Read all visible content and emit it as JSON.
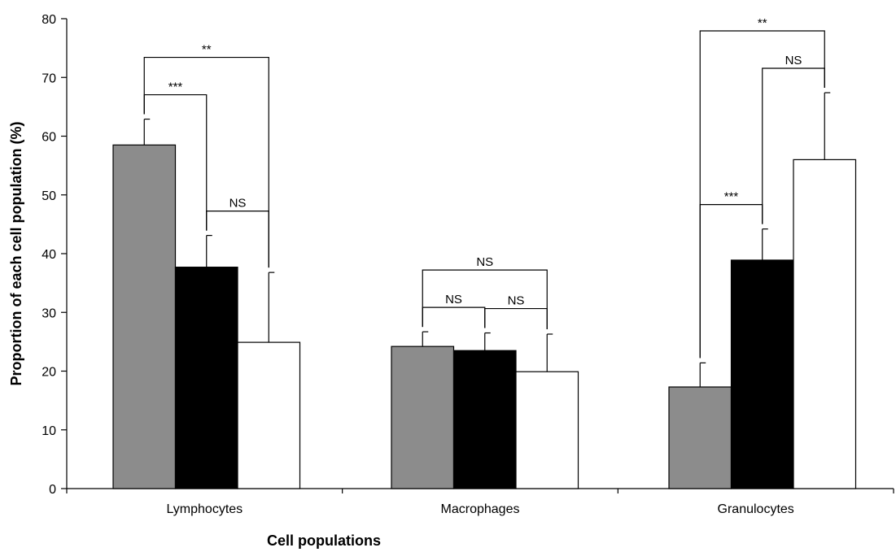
{
  "chart_data": {
    "type": "bar",
    "title": "",
    "xlabel": "Cell populations",
    "ylabel": "Proportion of each cell population (%)",
    "ylim": [
      0,
      80
    ],
    "yticks": [
      0,
      10,
      20,
      30,
      40,
      50,
      60,
      70,
      80
    ],
    "grid": false,
    "legend": "none",
    "categories": [
      "Lymphocytes",
      "Macrophages",
      "Granulocytes"
    ],
    "series": [
      {
        "color": "#8c8c8c",
        "values": [
          58.5,
          24.2,
          17.3
        ],
        "errors": [
          4.4,
          2.5,
          4.1
        ]
      },
      {
        "color": "#000000",
        "values": [
          37.7,
          23.5,
          38.9
        ],
        "errors": [
          5.4,
          3.0,
          5.3
        ]
      },
      {
        "color": "#ffffff",
        "values": [
          24.9,
          19.9,
          56.0
        ],
        "errors": [
          11.9,
          6.4,
          11.4
        ]
      }
    ],
    "significance": [
      {
        "category": 0,
        "from": 0,
        "to": 1,
        "label": "***"
      },
      {
        "category": 0,
        "from": 0,
        "to": 2,
        "label": "**"
      },
      {
        "category": 0,
        "from": 1,
        "to": 2,
        "label": "NS"
      },
      {
        "category": 1,
        "from": 0,
        "to": 1,
        "label": "NS"
      },
      {
        "category": 1,
        "from": 0,
        "to": 2,
        "label": "NS"
      },
      {
        "category": 1,
        "from": 1,
        "to": 2,
        "label": "NS"
      },
      {
        "category": 2,
        "from": 0,
        "to": 1,
        "label": "***"
      },
      {
        "category": 2,
        "from": 0,
        "to": 2,
        "label": "**"
      },
      {
        "category": 2,
        "from": 1,
        "to": 2,
        "label": "NS"
      }
    ]
  }
}
